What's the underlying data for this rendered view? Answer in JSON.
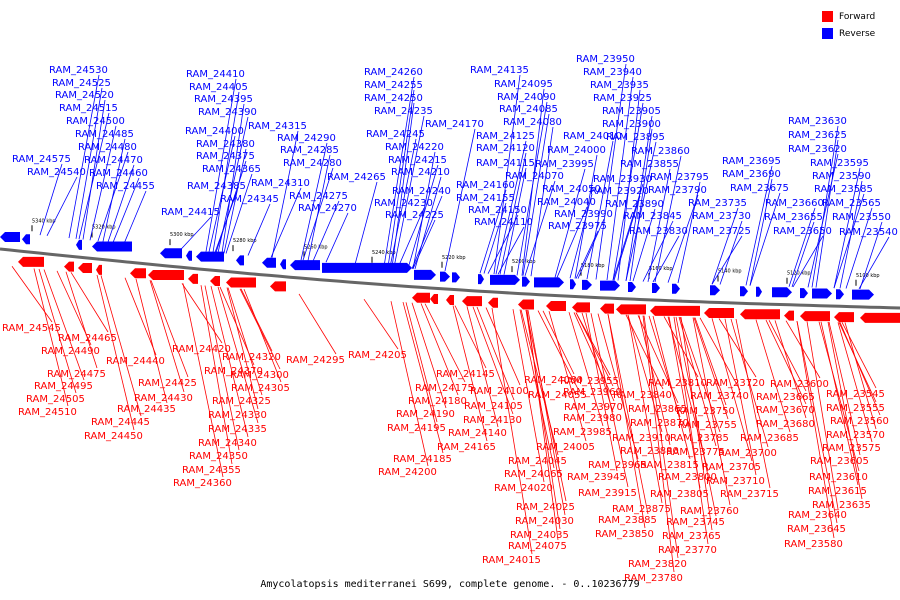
{
  "legend": [
    {
      "label": "Forward",
      "color": "#ff0000"
    },
    {
      "label": "Reverse",
      "color": "#0000ff"
    }
  ],
  "caption": "Amycolatopsis mediterranei S699, complete genome. - 0..10236779",
  "colors": {
    "forward": "#ff0000",
    "reverse": "#0000ff",
    "backbone": "#666666"
  },
  "scale_ticks": [
    "5340 kbp",
    "5320 kbp",
    "5300 kbp",
    "5280 kbp",
    "5260 kbp",
    "5240 kbp",
    "5220 kbp",
    "5200 kbp",
    "5180 kbp",
    "5160 kbp",
    "5140 kbp",
    "5120 kbp",
    "5100 kbp"
  ],
  "reverse_genes": [
    "RAM_24530",
    "RAM_24525",
    "RAM_24520",
    "RAM_24515",
    "RAM_24500",
    "RAM_24485",
    "RAM_24480",
    "RAM_24470",
    "RAM_24575",
    "RAM_24540",
    "RAM_24460",
    "RAM_24455",
    "RAM_24410",
    "RAM_24405",
    "RAM_24395",
    "RAM_24390",
    "RAM_24400",
    "RAM_24380",
    "RAM_24375",
    "RAM_24365",
    "RAM_24385",
    "RAM_24415",
    "RAM_24315",
    "RAM_24345",
    "RAM_24310",
    "RAM_24290",
    "RAM_24285",
    "RAM_24280",
    "RAM_24275",
    "RAM_24270",
    "RAM_24260",
    "RAM_24255",
    "RAM_24250",
    "RAM_24235",
    "RAM_24245",
    "RAM_24220",
    "RAM_24215",
    "RAM_24210",
    "RAM_24265",
    "RAM_24240",
    "RAM_24230",
    "RAM_24225",
    "RAM_24170",
    "RAM_24160",
    "RAM_24155",
    "RAM_24150",
    "RAM_24135",
    "RAM_24095",
    "RAM_24090",
    "RAM_24085",
    "RAM_24080",
    "RAM_24125",
    "RAM_24120",
    "RAM_24115",
    "RAM_24070",
    "RAM_24110",
    "RAM_24050",
    "RAM_24040",
    "RAM_24010",
    "RAM_24000",
    "RAM_23995",
    "RAM_23990",
    "RAM_23975",
    "RAM_23950",
    "RAM_23940",
    "RAM_23935",
    "RAM_23925",
    "RAM_23905",
    "RAM_23900",
    "RAM_23895",
    "RAM_23860",
    "RAM_23855",
    "RAM_23930",
    "RAM_23920",
    "RAM_23890",
    "RAM_23845",
    "RAM_23830",
    "RAM_23795",
    "RAM_23790",
    "RAM_23735",
    "RAM_23730",
    "RAM_23725",
    "RAM_23695",
    "RAM_23690",
    "RAM_23675",
    "RAM_23660",
    "RAM_23655",
    "RAM_23650",
    "RAM_23630",
    "RAM_23625",
    "RAM_23620",
    "RAM_23595",
    "RAM_23590",
    "RAM_23585",
    "RAM_23565",
    "RAM_23550",
    "RAM_23540"
  ],
  "forward_genes": [
    "RAM_24545",
    "RAM_24465",
    "RAM_24490",
    "RAM_24475",
    "RAM_24495",
    "RAM_24505",
    "RAM_24510",
    "RAM_24440",
    "RAM_24420",
    "RAM_24425",
    "RAM_24430",
    "RAM_24435",
    "RAM_24445",
    "RAM_24450",
    "RAM_24370",
    "RAM_24320",
    "RAM_24300",
    "RAM_24305",
    "RAM_24325",
    "RAM_24330",
    "RAM_24335",
    "RAM_24340",
    "RAM_24350",
    "RAM_24355",
    "RAM_24360",
    "RAM_24295",
    "RAM_24205",
    "RAM_24145",
    "RAM_24175",
    "RAM_24180",
    "RAM_24190",
    "RAM_24195",
    "RAM_24185",
    "RAM_24200",
    "RAM_24165",
    "RAM_24140",
    "RAM_24130",
    "RAM_24105",
    "RAM_24100",
    "RAM_24060",
    "RAM_24055",
    "RAM_24045",
    "RAM_24065",
    "RAM_24020",
    "RAM_24025",
    "RAM_24030",
    "RAM_24035",
    "RAM_24075",
    "RAM_24015",
    "RAM_24005",
    "RAM_23985",
    "RAM_23980",
    "RAM_23970",
    "RAM_23960",
    "RAM_23955",
    "RAM_23945",
    "RAM_23965",
    "RAM_23915",
    "RAM_23910",
    "RAM_23880",
    "RAM_23885",
    "RAM_23850",
    "RAM_23875",
    "RAM_23870",
    "RAM_23865",
    "RAM_23840",
    "RAM_23810",
    "RAM_23805",
    "RAM_23800",
    "RAM_23815",
    "RAM_23820",
    "RAM_23780",
    "RAM_23785",
    "RAM_23775",
    "RAM_23770",
    "RAM_23765",
    "RAM_23745",
    "RAM_23760",
    "RAM_23755",
    "RAM_23750",
    "RAM_23740",
    "RAM_23720",
    "RAM_23715",
    "RAM_23710",
    "RAM_23705",
    "RAM_23700",
    "RAM_23685",
    "RAM_23680",
    "RAM_23670",
    "RAM_23665",
    "RAM_23600",
    "RAM_23605",
    "RAM_23610",
    "RAM_23615",
    "RAM_23635",
    "RAM_23640",
    "RAM_23645",
    "RAM_23580",
    "RAM_23575",
    "RAM_23570",
    "RAM_23560",
    "RAM_23555",
    "RAM_23545"
  ]
}
